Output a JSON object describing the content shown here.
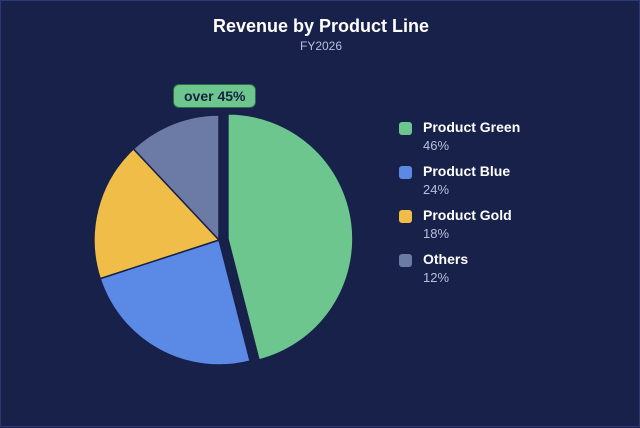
{
  "chart_data": {
    "type": "pie",
    "title": "Revenue by Product Line",
    "subtitle": "FY2026",
    "callout": "over 45%",
    "slices": [
      {
        "name": "Product Green",
        "value": 46,
        "label": "46%",
        "color": "#6cc68e",
        "exploded": true
      },
      {
        "name": "Product Blue",
        "value": 24,
        "label": "24%",
        "color": "#5b8ae6",
        "exploded": false
      },
      {
        "name": "Product Gold",
        "value": 18,
        "label": "18%",
        "color": "#f0bd48",
        "exploded": false
      },
      {
        "name": "Others",
        "value": 12,
        "label": "12%",
        "color": "#6c7aa6",
        "exploded": false
      }
    ],
    "legend_position": "right"
  },
  "colors": {
    "background": "#17214a",
    "title": "#ffffff",
    "subtitle": "#b8c0dc"
  }
}
